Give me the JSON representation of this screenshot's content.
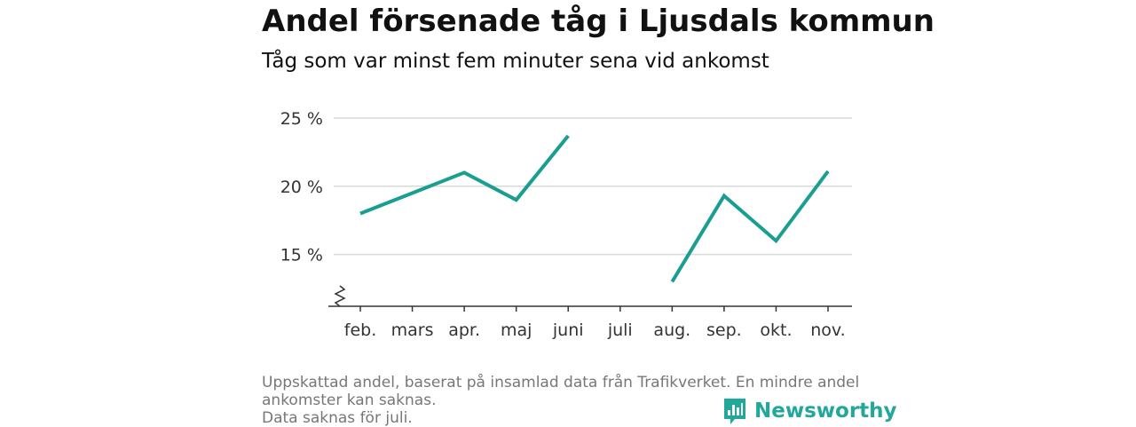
{
  "header": {
    "title": "Andel försenade tåg i Ljusdals kommun",
    "subtitle": "Tåg som var minst fem minuter sena vid ankomst"
  },
  "footnote": {
    "line1": "Uppskattad andel, baserat på insamlad data från Trafikverket. En mindre andel ankomster kan saknas.",
    "line2": "Data saknas för juli."
  },
  "brand": {
    "name": "Newsworthy",
    "icon": "bar-chart-speech-bubble-icon",
    "color": "#22a89a"
  },
  "chart_data": {
    "type": "line",
    "title": "Andel försenade tåg i Ljusdals kommun",
    "subtitle": "Tåg som var minst fem minuter sena vid ankomst",
    "categories": [
      "feb.",
      "mars",
      "apr.",
      "maj",
      "juni",
      "juli",
      "aug.",
      "sep.",
      "okt.",
      "nov."
    ],
    "series": [
      {
        "values": [
          18.0,
          19.5,
          21.0,
          19.0,
          23.7,
          null,
          13.0,
          19.3,
          16.0,
          21.1
        ],
        "color": "#1a9e92"
      }
    ],
    "y_ticks": [
      15,
      20,
      25
    ],
    "y_tick_labels": [
      "15 %",
      "20 %",
      "25 %"
    ],
    "ylim": [
      11.2,
      25
    ],
    "axis_break": true,
    "grid": "horizontal"
  }
}
